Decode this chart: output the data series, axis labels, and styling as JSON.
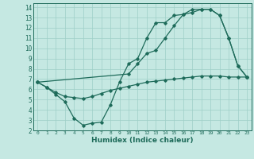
{
  "xlabel": "Humidex (Indice chaleur)",
  "background_color": "#c5e8e2",
  "grid_color": "#9ecfc7",
  "line_color": "#1e6b5a",
  "xlim": [
    -0.5,
    23.5
  ],
  "ylim": [
    2,
    14.4
  ],
  "xticks": [
    0,
    1,
    2,
    3,
    4,
    5,
    6,
    7,
    8,
    9,
    10,
    11,
    12,
    13,
    14,
    15,
    16,
    17,
    18,
    19,
    20,
    21,
    22,
    23
  ],
  "yticks": [
    2,
    3,
    4,
    5,
    6,
    7,
    8,
    9,
    10,
    11,
    12,
    13,
    14
  ],
  "series1_x": [
    0,
    1,
    2,
    3,
    4,
    5,
    6,
    7,
    8,
    9,
    10,
    11,
    12,
    13,
    14,
    15,
    16,
    17,
    18,
    19,
    20,
    21,
    22,
    23
  ],
  "series1_y": [
    6.7,
    6.2,
    5.5,
    4.8,
    3.2,
    2.5,
    2.7,
    2.8,
    4.5,
    6.7,
    8.5,
    9.0,
    11.0,
    12.5,
    12.5,
    13.2,
    13.3,
    13.8,
    13.8,
    13.8,
    13.2,
    11.0,
    8.3,
    7.2
  ],
  "series2_x": [
    0,
    10,
    11,
    12,
    13,
    14,
    15,
    16,
    17,
    18,
    19,
    20,
    21,
    22,
    23
  ],
  "series2_y": [
    6.7,
    7.5,
    8.5,
    9.5,
    9.8,
    11.0,
    12.2,
    13.3,
    13.5,
    13.8,
    13.8,
    13.2,
    11.0,
    8.3,
    7.2
  ],
  "series3_x": [
    0,
    1,
    2,
    3,
    4,
    5,
    6,
    7,
    8,
    9,
    10,
    11,
    12,
    13,
    14,
    15,
    16,
    17,
    18,
    19,
    20,
    21,
    22,
    23
  ],
  "series3_y": [
    6.7,
    6.2,
    5.7,
    5.3,
    5.2,
    5.1,
    5.3,
    5.6,
    5.9,
    6.1,
    6.3,
    6.5,
    6.7,
    6.8,
    6.9,
    7.0,
    7.1,
    7.2,
    7.3,
    7.3,
    7.3,
    7.2,
    7.2,
    7.2
  ]
}
